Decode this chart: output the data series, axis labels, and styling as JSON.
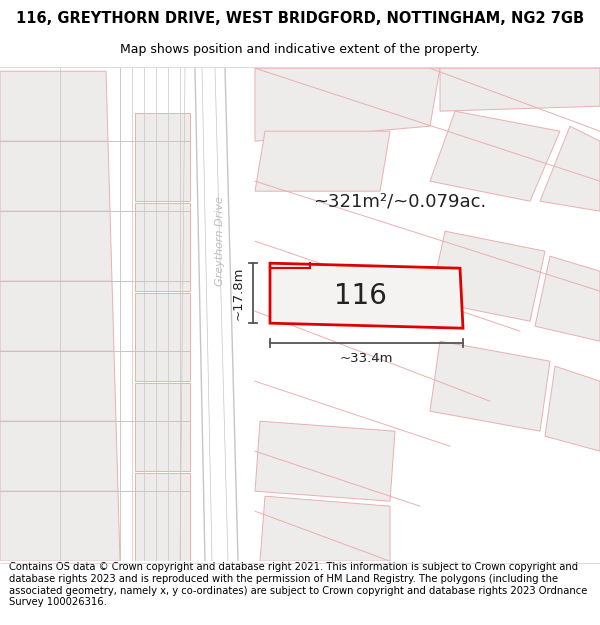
{
  "title_line1": "116, GREYTHORN DRIVE, WEST BRIDGFORD, NOTTINGHAM, NG2 7GB",
  "title_line2": "Map shows position and indicative extent of the property.",
  "footer_text": "Contains OS data © Crown copyright and database right 2021. This information is subject to Crown copyright and database rights 2023 and is reproduced with the permission of HM Land Registry. The polygons (including the associated geometry, namely x, y co-ordinates) are subject to Crown copyright and database rights 2023 Ordnance Survey 100026316.",
  "area_text": "~321m²/~0.079ac.",
  "house_number": "116",
  "width_label": "~33.4m",
  "height_label": "~17.8m",
  "road_label": "Greythorn Drive",
  "map_bg": "#f7f5f5",
  "plot_fill": "#f0edee",
  "plot_border": "#e00000",
  "block_color": "#eeebeb",
  "block_border_gray": "#c8c4c4",
  "block_border_pink": "#e8b0b0",
  "line_color": "#555555",
  "road_label_color": "#c0bcbc",
  "title_fontsize": 10.5,
  "subtitle_fontsize": 9,
  "footer_fontsize": 7.2,
  "area_fontsize": 13,
  "house_fontsize": 20,
  "dim_fontsize": 9.5,
  "road_fontsize": 8
}
